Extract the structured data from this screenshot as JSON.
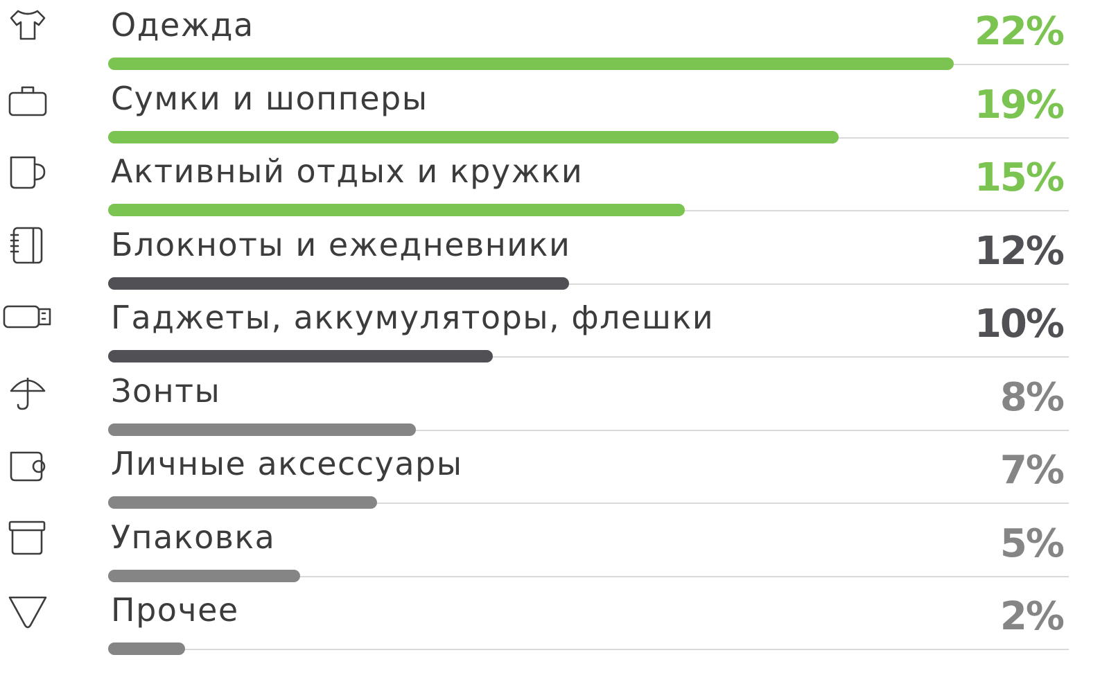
{
  "chart_data": {
    "type": "bar",
    "orientation": "horizontal",
    "title": "",
    "xlabel": "",
    "ylabel": "",
    "unit": "%",
    "categories": [
      "Одежда",
      "Сумки и шопперы",
      "Активный отдых и кружки",
      "Блокноты и ежедневники",
      "Гаджеты, аккумуляторы, флешки",
      "Зонты",
      "Личные аксессуары",
      "Упаковка",
      "Прочее"
    ],
    "values": [
      22,
      19,
      15,
      12,
      10,
      8,
      7,
      5,
      2
    ],
    "value_labels": [
      "22%",
      "19%",
      "15%",
      "12%",
      "10%",
      "8%",
      "7%",
      "5%",
      "2%"
    ],
    "icons": [
      "tshirt-icon",
      "bag-icon",
      "mug-icon",
      "notebook-icon",
      "usb-flash-icon",
      "umbrella-icon",
      "wallet-icon",
      "box-icon",
      "diamond-icon"
    ],
    "tiers": [
      "top",
      "top",
      "top",
      "mid",
      "mid",
      "low",
      "low",
      "low",
      "low"
    ],
    "xlim": [
      0,
      22
    ],
    "grid": false,
    "legend": "none",
    "colors": {
      "top": "#7cc452",
      "mid": "#505055",
      "low": "#858585",
      "label": "#3c3c3c",
      "rule": "#d9d9d9",
      "icon": "#3c3c3c"
    }
  }
}
